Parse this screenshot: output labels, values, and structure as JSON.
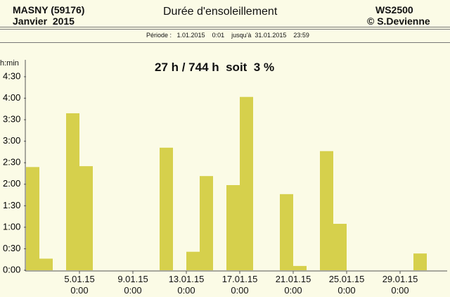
{
  "header": {
    "station": "MASNY (59176)",
    "month": "Janvier  2015",
    "title": "Durée d'ensoleillement",
    "device": "WS2500",
    "author": "© S.Devienne",
    "period": "Période :   1.01.2015    0:01    jusqu'à  31.01.2015    23:59"
  },
  "chart_data": {
    "type": "bar",
    "subtitle": "27 h / 744 h  soit  3 %",
    "ylabel": "h:min",
    "color": "#d6d04c",
    "x": [
      1,
      2,
      3,
      4,
      5,
      6,
      7,
      8,
      9,
      10,
      11,
      12,
      13,
      14,
      15,
      16,
      17,
      18,
      19,
      20,
      21,
      22,
      23,
      24,
      25,
      26,
      27,
      28,
      29,
      30,
      31
    ],
    "values": [
      2.4,
      0.27,
      0,
      3.65,
      2.42,
      0,
      0,
      0,
      0,
      0,
      2.85,
      0,
      0.43,
      2.19,
      0,
      1.98,
      4.03,
      0,
      0,
      1.77,
      0.1,
      0,
      2.77,
      1.08,
      0,
      0,
      0,
      0,
      0,
      0.39,
      0
    ],
    "xlim": [
      1,
      32
    ],
    "xticks": [
      {
        "value": 5,
        "label": "5.01.15\n0:00"
      },
      {
        "value": 9,
        "label": "9.01.15\n0:00"
      },
      {
        "value": 13,
        "label": "13.01.15\n0:00"
      },
      {
        "value": 17,
        "label": "17.01.15\n0:00"
      },
      {
        "value": 21,
        "label": "21.01.15\n0:00"
      },
      {
        "value": 25,
        "label": "25.01.15\n0:00"
      },
      {
        "value": 29,
        "label": "29.01.15\n0:00"
      }
    ],
    "ylim": [
      0,
      4.5
    ],
    "yticks": [
      {
        "value": 0,
        "label": "0:00"
      },
      {
        "value": 0.5,
        "label": "0:30"
      },
      {
        "value": 1,
        "label": "1:00"
      },
      {
        "value": 1.5,
        "label": "1:30"
      },
      {
        "value": 2,
        "label": "2:00"
      },
      {
        "value": 2.5,
        "label": "2:30"
      },
      {
        "value": 3,
        "label": "3:00"
      },
      {
        "value": 3.5,
        "label": "3:30"
      },
      {
        "value": 4,
        "label": "4:00"
      },
      {
        "value": 4.5,
        "label": "4:30"
      }
    ]
  }
}
